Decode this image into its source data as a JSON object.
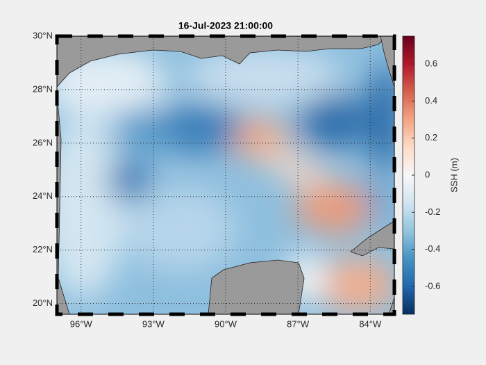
{
  "chart_data": {
    "type": "map",
    "title": "16-Jul-2023 21:00:00",
    "xlim": [
      -97,
      -83
    ],
    "ylim": [
      19.6,
      30
    ],
    "xticks": [
      {
        "value": -96,
        "label": "96°W"
      },
      {
        "value": -93,
        "label": "93°W"
      },
      {
        "value": -90,
        "label": "90°W"
      },
      {
        "value": -87,
        "label": "87°W"
      },
      {
        "value": -84,
        "label": "84°W"
      }
    ],
    "yticks": [
      {
        "value": 20,
        "label": "20°N"
      },
      {
        "value": 22,
        "label": "22°N"
      },
      {
        "value": 24,
        "label": "24°N"
      },
      {
        "value": 26,
        "label": "26°N"
      },
      {
        "value": 28,
        "label": "28°N"
      },
      {
        "value": 30,
        "label": "30°N"
      }
    ],
    "grid": true,
    "colorbar": {
      "label": "SSH (m)",
      "lim": [
        -0.75,
        0.75
      ],
      "ticks": [
        -0.6,
        -0.4,
        -0.2,
        0,
        0.2,
        0.4,
        0.6
      ],
      "colormap": [
        "#053061",
        "#2166ac",
        "#4393c3",
        "#92c5de",
        "#d1e5f0",
        "#f7f7f7",
        "#fddbc7",
        "#f4a582",
        "#d6604d",
        "#b2182b",
        "#67001f"
      ]
    }
  }
}
